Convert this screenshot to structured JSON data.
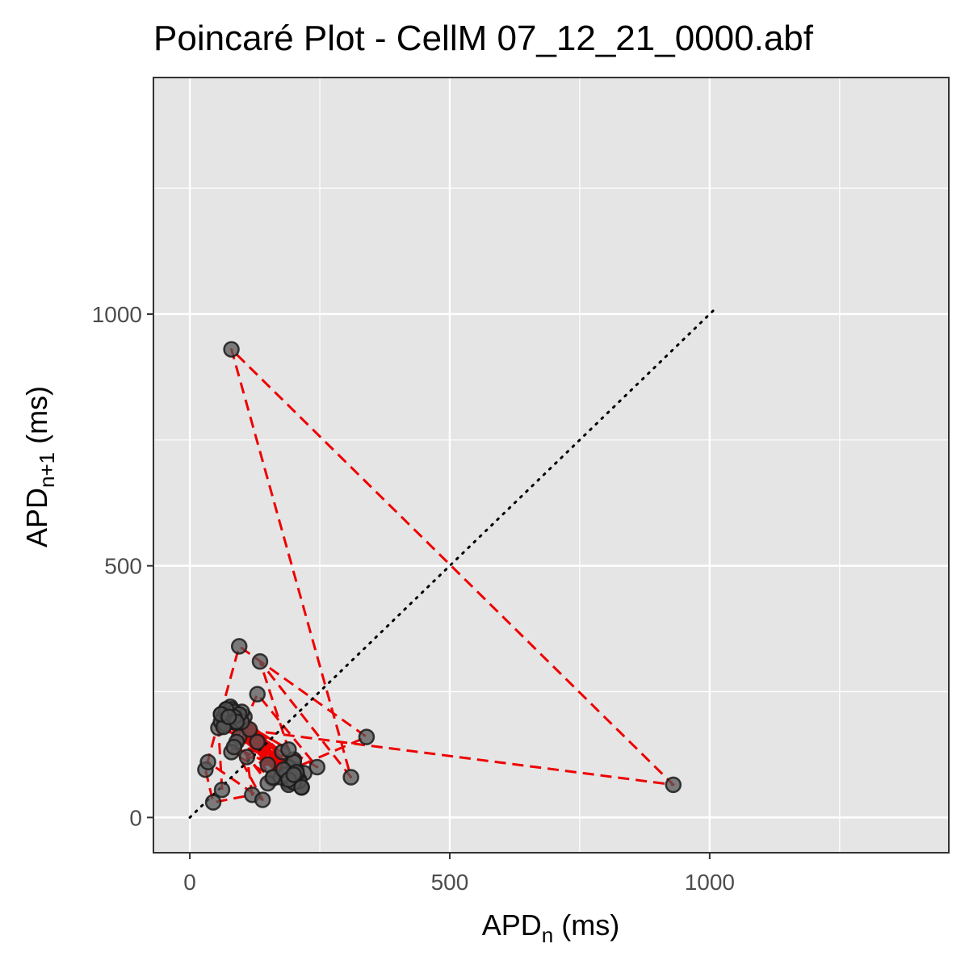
{
  "chart_data": {
    "type": "scatter",
    "title": "Poincaré Plot - CellM 07_12_21_0000.abf",
    "xlabel": {
      "main": "APD",
      "sub": "n",
      "unit": " (ms)"
    },
    "ylabel": {
      "main": "APD",
      "sub": "n+1",
      "unit": " (ms)"
    },
    "xlim": [
      -70,
      1460
    ],
    "ylim": [
      -70,
      1470
    ],
    "x_ticks": [
      0,
      500,
      1000
    ],
    "y_ticks": [
      0,
      500,
      1000
    ],
    "x_tick_labels": [
      "0",
      "500",
      "1000"
    ],
    "y_tick_labels": [
      "0",
      "500",
      "1000"
    ],
    "grid": true,
    "identity_line": {
      "from": 0,
      "to": 1010
    },
    "colors": {
      "panel": "#e5e5e5",
      "grid": "#ffffff",
      "point_fill": "#555555",
      "point_stroke": "#1a1a1a",
      "path": "#ee0000",
      "identity": "#000000"
    },
    "sequence": [
      62,
      55,
      178,
      130,
      150,
      105,
      200,
      85,
      190,
      70,
      215,
      60,
      205,
      95,
      160,
      78,
      220,
      88,
      190,
      65,
      200,
      115,
      175,
      80,
      215,
      60,
      190,
      100,
      210,
      75,
      205,
      90,
      150,
      68,
      185,
      85,
      210,
      72,
      200,
      110,
      120,
      45,
      30,
      95,
      340,
      160,
      80,
      130,
      245,
      100,
      190,
      135,
      310,
      80,
      930,
      65,
      180,
      95,
      205,
      85,
      200,
      70,
      215,
      60,
      205,
      90,
      190,
      75,
      200,
      85,
      140,
      35,
      110
    ]
  }
}
